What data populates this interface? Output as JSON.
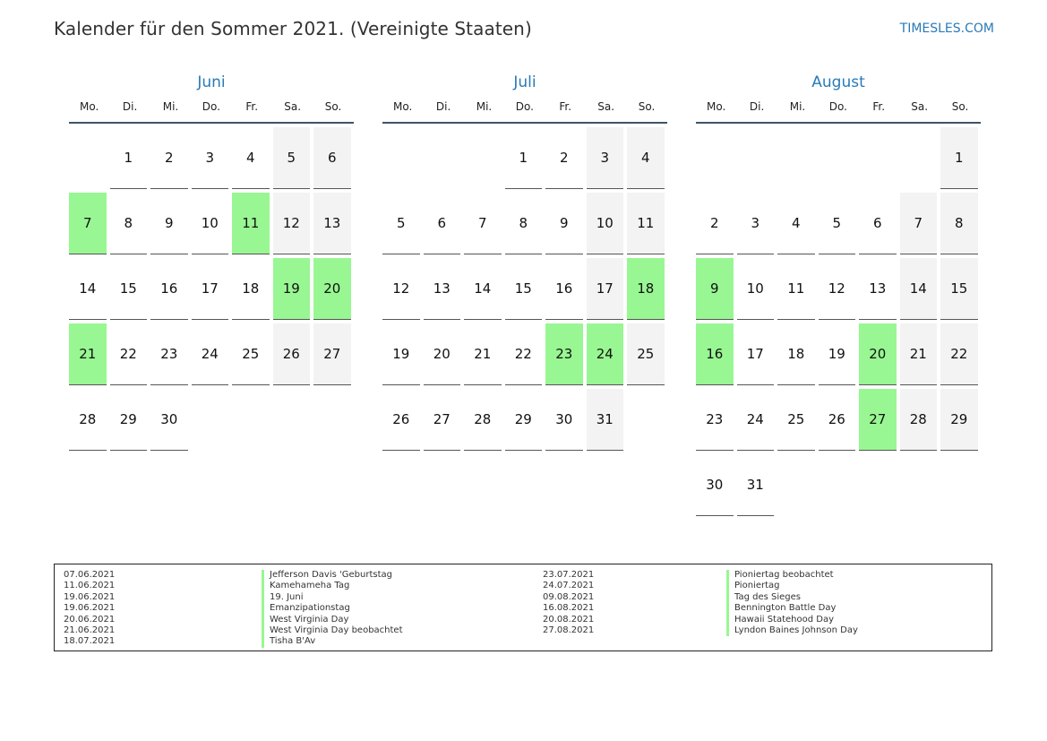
{
  "header": {
    "title": "Kalender für den Sommer 2021. (Vereinigte Staaten)",
    "site": "TIMESLES.COM"
  },
  "colors": {
    "holiday": "#98f792",
    "weekend": "#f3f3f3",
    "accent": "#2a7ab8"
  },
  "weekdays": [
    "Mo.",
    "Di.",
    "Mi.",
    "Do.",
    "Fr.",
    "Sa.",
    "So."
  ],
  "months": [
    {
      "name": "Juni",
      "offset": 1,
      "days": 30,
      "holidays": [
        7,
        11,
        19,
        20,
        21
      ]
    },
    {
      "name": "Juli",
      "offset": 3,
      "days": 31,
      "holidays": [
        18,
        23,
        24
      ]
    },
    {
      "name": "August",
      "offset": 6,
      "days": 31,
      "holidays": [
        9,
        16,
        20,
        27
      ]
    }
  ],
  "legend": {
    "left": [
      {
        "date": "07.06.2021",
        "name": "Jefferson Davis 'Geburtstag"
      },
      {
        "date": "11.06.2021",
        "name": "Kamehameha Tag"
      },
      {
        "date": "19.06.2021",
        "name": "19. Juni"
      },
      {
        "date": "19.06.2021",
        "name": "Emanzipationstag"
      },
      {
        "date": "20.06.2021",
        "name": "West Virginia Day"
      },
      {
        "date": "21.06.2021",
        "name": "West Virginia Day beobachtet"
      },
      {
        "date": "18.07.2021",
        "name": "Tisha B'Av"
      }
    ],
    "right": [
      {
        "date": "23.07.2021",
        "name": "Pioniertag beobachtet"
      },
      {
        "date": "24.07.2021",
        "name": "Pioniertag"
      },
      {
        "date": "09.08.2021",
        "name": "Tag des Sieges"
      },
      {
        "date": "16.08.2021",
        "name": "Bennington Battle Day"
      },
      {
        "date": "20.08.2021",
        "name": "Hawaii Statehood Day"
      },
      {
        "date": "27.08.2021",
        "name": "Lyndon Baines Johnson Day"
      }
    ]
  }
}
